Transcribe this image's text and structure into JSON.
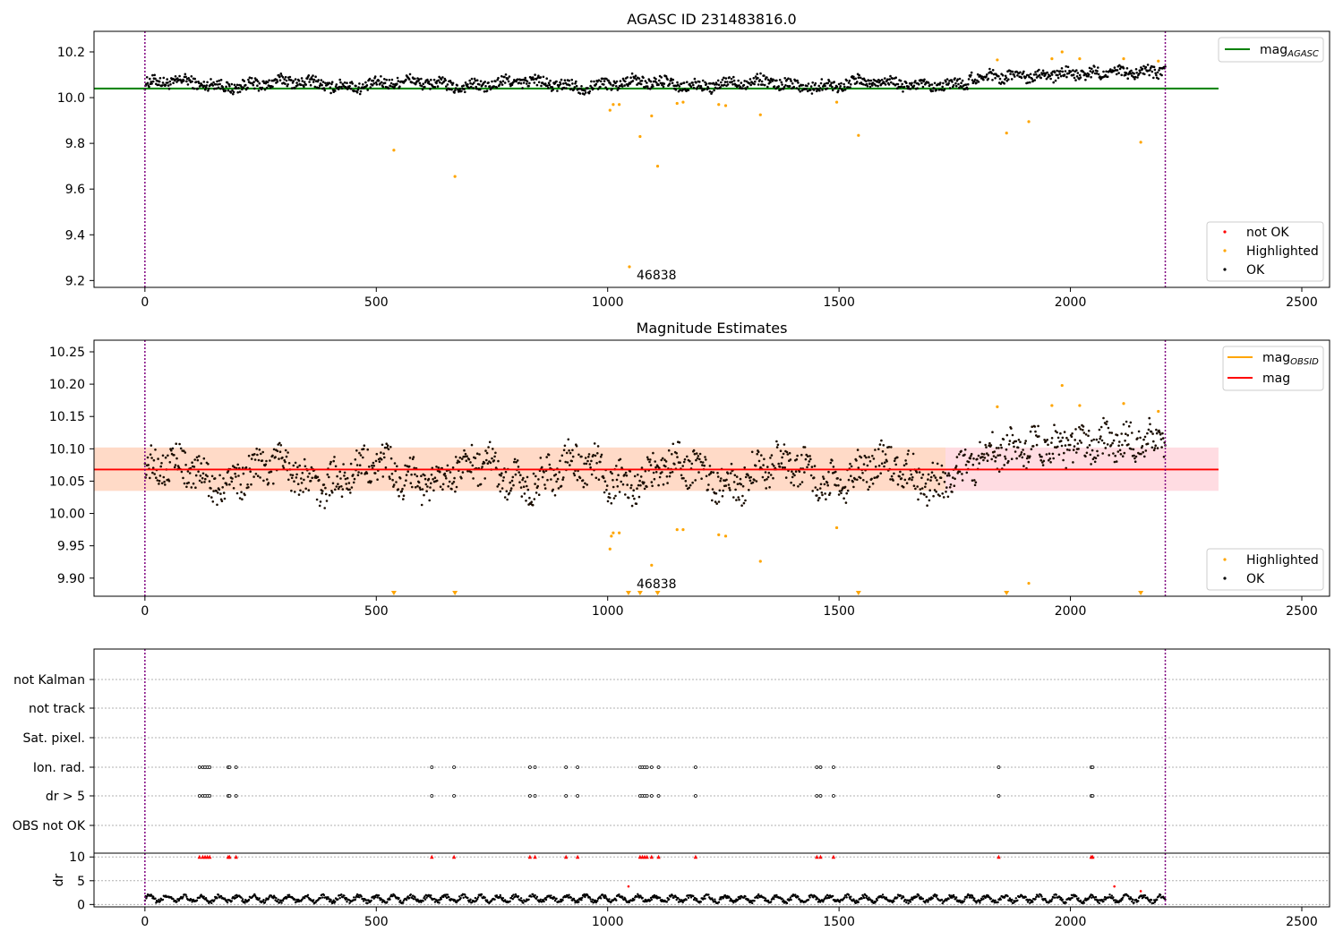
{
  "chart_data": [
    {
      "type": "scatter",
      "title": "AGASC ID 231483816.0",
      "xlim": [
        -110,
        2560
      ],
      "ylim": [
        9.17,
        10.29
      ],
      "xticks": [
        0,
        500,
        1000,
        1500,
        2000,
        2500
      ],
      "yticks": [
        9.2,
        9.4,
        9.6,
        9.8,
        10.0,
        10.2
      ],
      "ytick_labels": [
        "9.2",
        "9.4",
        "9.6",
        "9.8",
        "10.0",
        "10.2"
      ],
      "vlines": [
        0,
        2205
      ],
      "hline": {
        "label_base": "mag",
        "label_sub": "AGASC",
        "y": 10.04,
        "x_range": [
          -110,
          2320
        ],
        "color": "#008000"
      },
      "annotation": {
        "text": "46838",
        "x": 1060,
        "y": 9.22
      },
      "legend": [
        {
          "label": "not OK",
          "color": "#ff0000"
        },
        {
          "label": "Highlighted",
          "color": "#ffa500"
        },
        {
          "label": "OK",
          "color": "#000000"
        }
      ],
      "highlighted_points": [
        [
          538,
          9.77
        ],
        [
          670,
          9.655
        ],
        [
          1005,
          9.945
        ],
        [
          1012,
          9.97
        ],
        [
          1025,
          9.97
        ],
        [
          1047,
          9.26
        ],
        [
          1070,
          9.83
        ],
        [
          1095,
          9.92
        ],
        [
          1108,
          9.7
        ],
        [
          1150,
          9.975
        ],
        [
          1163,
          9.98
        ],
        [
          1240,
          9.97
        ],
        [
          1255,
          9.965
        ],
        [
          1330,
          9.925
        ],
        [
          1495,
          9.98
        ],
        [
          1542,
          9.835
        ],
        [
          1842,
          10.165
        ],
        [
          1862,
          9.845
        ],
        [
          1910,
          9.895
        ],
        [
          1960,
          10.17
        ],
        [
          1982,
          10.2
        ],
        [
          2020,
          10.17
        ],
        [
          2115,
          10.17
        ],
        [
          2152,
          9.805
        ],
        [
          2190,
          10.16
        ]
      ]
    },
    {
      "type": "scatter",
      "title": "Magnitude Estimates",
      "xlim": [
        -110,
        2560
      ],
      "ylim": [
        9.872,
        10.268
      ],
      "xticks": [
        0,
        500,
        1000,
        1500,
        2000,
        2500
      ],
      "yticks": [
        9.9,
        9.95,
        10.0,
        10.05,
        10.1,
        10.15,
        10.2,
        10.25
      ],
      "ytick_labels": [
        "9.90",
        "9.95",
        "10.00",
        "10.05",
        "10.10",
        "10.15",
        "10.20",
        "10.25"
      ],
      "vlines": [
        0,
        2205
      ],
      "mean_line": {
        "y": 10.068,
        "x_range": [
          -110,
          2320
        ]
      },
      "band_outer": {
        "y_range": [
          10.035,
          10.102
        ],
        "x_range": [
          -110,
          2320
        ],
        "color": "#ffc0cb"
      },
      "band_inner": {
        "y_range": [
          10.035,
          10.102
        ],
        "x_range": [
          -110,
          1730
        ],
        "color": "#ffd9c0"
      },
      "annotation": {
        "text": "46838",
        "x": 1060,
        "y": 9.882
      },
      "legend_top": [
        {
          "label_base": "mag",
          "label_sub": "OBSID",
          "color": "#ffa500"
        },
        {
          "label_base": "mag",
          "label_sub": "",
          "color": "#ff0000"
        }
      ],
      "legend_bottom": [
        {
          "label": "Highlighted",
          "color": "#ffa500"
        },
        {
          "label": "OK",
          "color": "#000000"
        }
      ],
      "lower_limit_markers": [
        538,
        670,
        1045,
        1070,
        1108,
        1542,
        1862,
        2152
      ],
      "highlighted_points": [
        [
          1005,
          9.945
        ],
        [
          1008,
          9.965
        ],
        [
          1012,
          9.97
        ],
        [
          1025,
          9.97
        ],
        [
          1095,
          9.92
        ],
        [
          1150,
          9.975
        ],
        [
          1163,
          9.975
        ],
        [
          1240,
          9.967
        ],
        [
          1255,
          9.965
        ],
        [
          1330,
          9.926
        ],
        [
          1495,
          9.978
        ],
        [
          1842,
          10.165
        ],
        [
          1910,
          9.892
        ],
        [
          1960,
          10.167
        ],
        [
          1982,
          10.198
        ],
        [
          2020,
          10.167
        ],
        [
          2115,
          10.17
        ],
        [
          2190,
          10.158
        ]
      ]
    },
    {
      "type": "scatter",
      "xlim": [
        -110,
        2560
      ],
      "xticks": [
        0,
        500,
        1000,
        1500,
        2000,
        2500
      ],
      "vlines": [
        0,
        2205
      ],
      "flag_rows": [
        "not Kalman",
        "not track",
        "Sat. pixel.",
        "Ion. rad.",
        "dr > 5",
        "OBS not OK"
      ],
      "flag_x": [
        118,
        125,
        130,
        135,
        140,
        180,
        183,
        197,
        620,
        668,
        832,
        843,
        910,
        935,
        1070,
        1075,
        1080,
        1085,
        1095,
        1110,
        1190,
        1452,
        1460,
        1488,
        1845,
        2045,
        2048
      ],
      "ylabel": "dr",
      "dr_ylim": [
        -0.5,
        10.8
      ],
      "dr_yticks": [
        0,
        5,
        10
      ],
      "dr_high_x": [
        118,
        125,
        130,
        135,
        140,
        180,
        183,
        197,
        620,
        668,
        832,
        843,
        910,
        935,
        1070,
        1075,
        1080,
        1085,
        1095,
        1110,
        1190,
        1452,
        1460,
        1488,
        1845,
        2045,
        2048
      ],
      "dr_outliers": [
        [
          1045,
          3.8
        ],
        [
          2095,
          3.8
        ],
        [
          2152,
          2.8
        ]
      ]
    }
  ]
}
